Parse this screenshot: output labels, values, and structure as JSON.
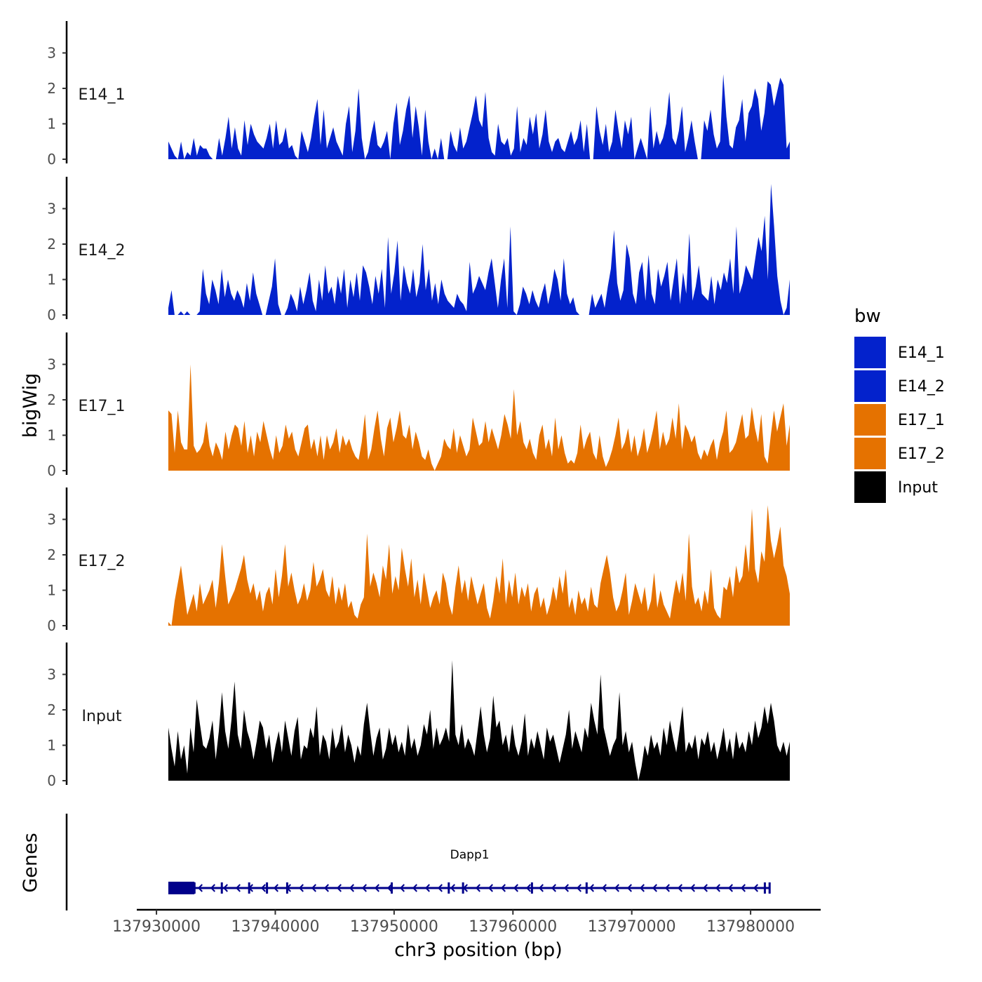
{
  "chart_data": {
    "type": "area",
    "chromosome": "chr3",
    "ylabel": "bigWig",
    "xlabel": "chr3 position (bp)",
    "genes_label": "Genes",
    "xlim": [
      137930000,
      137983000
    ],
    "data_range": [
      137931000,
      137983300
    ],
    "ylim": [
      0,
      3.9
    ],
    "yticks": [
      0,
      1,
      2,
      3
    ],
    "xticks": [
      137930000,
      137940000,
      137950000,
      137960000,
      137970000,
      137980000
    ],
    "xtick_labels": [
      "137930000",
      "137940000",
      "137950000",
      "137960000",
      "137970000",
      "137980000"
    ],
    "legend": {
      "title": "bw",
      "placement": "right",
      "entries": [
        {
          "name": "E14_1",
          "color": "#0322CC"
        },
        {
          "name": "E14_2",
          "color": "#0322CC"
        },
        {
          "name": "E17_1",
          "color": "#E57200"
        },
        {
          "name": "E17_2",
          "color": "#E57200"
        },
        {
          "name": "Input",
          "color": "#000000"
        }
      ]
    },
    "series": [
      {
        "name": "E14_1",
        "color": "#0322CC",
        "step": 150,
        "values": [
          0.5,
          0.3,
          0.1,
          0.0,
          0.5,
          0.0,
          0.2,
          0.1,
          0.6,
          0.1,
          0.4,
          0.3,
          0.3,
          0.1,
          0.0,
          0.0,
          0.6,
          0.1,
          0.6,
          1.2,
          0.3,
          0.9,
          0.3,
          0.1,
          1.1,
          0.4,
          1.0,
          0.7,
          0.5,
          0.4,
          0.3,
          0.6,
          1.0,
          0.3,
          1.1,
          0.4,
          0.5,
          0.9,
          0.3,
          0.4,
          0.1,
          0.0,
          0.8,
          0.5,
          0.2,
          0.6,
          1.2,
          1.7,
          0.4,
          1.4,
          0.3,
          0.6,
          0.9,
          0.5,
          0.3,
          0.1,
          1.0,
          1.5,
          0.2,
          0.8,
          2.0,
          0.6,
          0.0,
          0.2,
          0.7,
          1.1,
          0.4,
          0.3,
          0.5,
          0.8,
          0.0,
          1.0,
          1.6,
          0.4,
          0.8,
          1.4,
          1.8,
          0.6,
          1.5,
          0.9,
          0.1,
          1.4,
          0.5,
          0.0,
          0.3,
          0.0,
          0.6,
          0.0,
          0.0,
          0.8,
          0.4,
          0.2,
          0.9,
          0.3,
          0.5,
          0.9,
          1.3,
          1.8,
          1.1,
          0.9,
          1.9,
          0.6,
          0.2,
          0.1,
          1.0,
          0.5,
          0.4,
          0.6,
          0.1,
          0.3,
          1.5,
          0.2,
          0.6,
          0.4,
          1.2,
          0.7,
          1.3,
          0.3,
          0.7,
          1.4,
          0.5,
          0.2,
          0.5,
          0.6,
          0.3,
          0.2,
          0.5,
          0.8,
          0.4,
          0.6,
          1.1,
          0.2,
          1.0,
          0.0,
          0.0,
          1.5,
          0.8,
          0.4,
          1.0,
          0.2,
          0.5,
          1.4,
          0.8,
          0.3,
          1.1,
          0.7,
          1.2,
          0.0,
          0.3,
          0.6,
          0.3,
          0.0,
          1.5,
          0.3,
          0.8,
          0.4,
          0.6,
          1.0,
          1.9,
          0.6,
          0.4,
          0.8,
          1.5,
          0.2,
          0.6,
          1.1,
          0.5,
          0.0,
          0.0,
          1.1,
          0.8,
          1.4,
          0.7,
          0.3,
          0.5,
          2.4,
          1.2,
          0.4,
          0.3,
          0.9,
          1.1,
          1.7,
          0.5,
          1.3,
          1.5,
          2.0,
          1.7,
          0.8,
          1.3,
          2.2,
          2.1,
          1.5,
          1.9,
          2.3,
          2.1,
          0.3,
          0.5
        ]
      },
      {
        "name": "E14_2",
        "color": "#0322CC",
        "step": 150,
        "values": [
          0.2,
          0.7,
          0.0,
          0.0,
          0.1,
          0.0,
          0.1,
          0.0,
          0.0,
          0.0,
          0.1,
          1.3,
          0.6,
          0.3,
          1.0,
          0.7,
          0.3,
          1.3,
          0.5,
          1.0,
          0.6,
          0.4,
          0.7,
          0.5,
          0.2,
          0.9,
          0.4,
          1.2,
          0.6,
          0.3,
          0.0,
          0.0,
          0.4,
          0.8,
          1.6,
          0.3,
          0.0,
          0.0,
          0.2,
          0.6,
          0.4,
          0.1,
          0.8,
          0.3,
          0.7,
          1.2,
          0.4,
          0.1,
          1.0,
          0.4,
          1.4,
          0.6,
          0.8,
          0.3,
          1.1,
          0.6,
          1.3,
          0.2,
          1.0,
          0.5,
          1.2,
          0.4,
          1.4,
          1.2,
          0.8,
          0.3,
          1.1,
          0.6,
          1.3,
          0.2,
          2.2,
          0.6,
          1.2,
          2.1,
          0.4,
          1.4,
          0.9,
          0.6,
          1.3,
          0.5,
          0.9,
          2.0,
          0.7,
          1.3,
          0.4,
          0.9,
          0.3,
          1.0,
          0.6,
          0.4,
          0.3,
          0.2,
          0.6,
          0.4,
          0.3,
          0.1,
          1.5,
          0.6,
          0.8,
          1.1,
          0.9,
          0.7,
          1.2,
          1.6,
          0.9,
          0.2,
          1.0,
          1.6,
          0.2,
          2.5,
          0.1,
          0.0,
          0.3,
          0.8,
          0.6,
          0.3,
          0.7,
          0.4,
          0.2,
          0.6,
          0.9,
          0.3,
          0.7,
          1.3,
          1.0,
          0.4,
          1.6,
          0.6,
          0.3,
          0.5,
          0.1,
          0.0,
          0.0,
          0.0,
          0.0,
          0.6,
          0.2,
          0.4,
          0.6,
          0.2,
          0.8,
          1.3,
          2.4,
          0.9,
          0.4,
          0.7,
          2.0,
          1.6,
          0.6,
          0.3,
          1.2,
          1.5,
          0.4,
          1.7,
          0.6,
          0.3,
          1.3,
          0.8,
          1.1,
          1.5,
          0.4,
          1.0,
          1.6,
          0.3,
          1.2,
          0.6,
          2.3,
          0.4,
          0.8,
          1.4,
          0.6,
          0.5,
          0.4,
          1.1,
          0.3,
          1.0,
          0.7,
          1.2,
          0.9,
          1.6,
          0.6,
          2.5,
          0.6,
          0.9,
          1.4,
          1.2,
          1.0,
          1.6,
          2.2,
          1.8,
          2.8,
          1.0,
          3.7,
          2.5,
          1.1,
          0.4,
          0.0,
          0.2,
          1.0
        ]
      },
      {
        "name": "E17_1",
        "color": "#E57200",
        "step": 150,
        "values": [
          1.7,
          1.6,
          0.5,
          1.7,
          0.8,
          0.6,
          0.6,
          3.0,
          0.7,
          0.5,
          0.6,
          0.8,
          1.4,
          0.7,
          0.4,
          0.8,
          0.6,
          0.3,
          1.1,
          0.6,
          1.0,
          1.3,
          1.2,
          0.7,
          1.4,
          0.5,
          1.0,
          0.4,
          1.1,
          0.8,
          1.4,
          1.0,
          0.6,
          0.3,
          1.0,
          0.5,
          0.7,
          1.3,
          0.9,
          1.1,
          0.6,
          0.4,
          0.8,
          1.2,
          1.3,
          0.6,
          0.9,
          0.4,
          1.0,
          0.3,
          1.0,
          0.6,
          0.8,
          1.2,
          0.5,
          1.0,
          0.7,
          0.9,
          0.6,
          0.4,
          0.3,
          0.8,
          1.6,
          0.3,
          0.6,
          1.2,
          1.7,
          0.9,
          0.4,
          1.2,
          1.5,
          0.8,
          1.2,
          1.7,
          1.0,
          0.9,
          1.3,
          0.6,
          1.1,
          0.8,
          0.4,
          0.3,
          0.6,
          0.2,
          0.0,
          0.2,
          0.4,
          0.9,
          0.7,
          0.6,
          1.2,
          0.5,
          1.0,
          0.7,
          0.4,
          0.6,
          1.5,
          1.1,
          0.7,
          0.8,
          1.4,
          0.8,
          1.2,
          0.9,
          0.6,
          1.0,
          1.6,
          1.3,
          0.9,
          2.3,
          1.0,
          1.4,
          0.8,
          0.6,
          0.9,
          0.5,
          0.3,
          1.0,
          1.3,
          0.6,
          0.9,
          0.4,
          1.5,
          0.6,
          1.0,
          0.5,
          0.2,
          0.3,
          0.2,
          0.5,
          1.3,
          0.6,
          0.9,
          1.1,
          0.5,
          0.3,
          1.0,
          0.4,
          0.1,
          0.3,
          0.6,
          1.0,
          1.5,
          0.6,
          0.8,
          1.2,
          0.5,
          1.0,
          0.4,
          0.7,
          1.2,
          0.5,
          0.8,
          1.2,
          1.7,
          0.6,
          1.1,
          0.7,
          0.9,
          1.5,
          0.9,
          1.9,
          0.6,
          1.3,
          1.1,
          0.8,
          1.0,
          0.5,
          0.3,
          0.6,
          0.4,
          0.7,
          0.9,
          0.3,
          0.8,
          1.1,
          1.7,
          0.5,
          0.6,
          0.8,
          1.2,
          1.6,
          0.9,
          1.0,
          1.8,
          1.2,
          0.8,
          1.6,
          0.4,
          0.2,
          1.0,
          1.7,
          1.1,
          1.5,
          1.9,
          0.7,
          1.3
        ]
      },
      {
        "name": "E17_2",
        "color": "#E57200",
        "step": 150,
        "values": [
          0.1,
          0.0,
          0.7,
          1.2,
          1.7,
          1.0,
          0.3,
          0.6,
          0.9,
          0.4,
          1.2,
          0.6,
          0.8,
          1.0,
          1.3,
          0.5,
          1.2,
          2.3,
          1.4,
          0.6,
          0.8,
          1.0,
          1.3,
          1.6,
          2.0,
          1.3,
          0.9,
          1.2,
          0.7,
          1.0,
          0.4,
          0.9,
          1.1,
          0.6,
          1.6,
          0.8,
          1.4,
          2.3,
          1.1,
          1.5,
          1.0,
          0.6,
          0.8,
          1.2,
          0.7,
          1.0,
          1.8,
          1.1,
          1.3,
          1.6,
          1.0,
          0.8,
          1.4,
          0.6,
          1.1,
          0.7,
          1.2,
          0.5,
          0.7,
          0.3,
          0.2,
          0.6,
          0.8,
          2.6,
          1.1,
          1.5,
          1.2,
          0.8,
          1.7,
          1.3,
          2.3,
          0.9,
          1.4,
          1.0,
          2.2,
          1.6,
          1.1,
          1.9,
          0.8,
          1.3,
          0.6,
          1.5,
          1.0,
          0.5,
          0.8,
          1.0,
          0.6,
          1.5,
          1.2,
          0.6,
          0.3,
          1.1,
          1.7,
          0.9,
          1.3,
          0.7,
          1.4,
          1.0,
          0.6,
          0.9,
          1.2,
          0.5,
          0.2,
          0.7,
          1.4,
          0.9,
          1.9,
          0.6,
          1.3,
          0.8,
          1.5,
          0.6,
          1.1,
          0.8,
          1.2,
          0.4,
          0.9,
          1.1,
          0.5,
          0.8,
          0.3,
          0.6,
          1.1,
          0.7,
          1.4,
          0.9,
          1.6,
          0.5,
          0.8,
          0.3,
          1.0,
          0.6,
          0.8,
          0.4,
          1.1,
          0.6,
          0.5,
          1.2,
          1.6,
          2.0,
          1.5,
          0.8,
          0.4,
          0.6,
          1.0,
          1.5,
          0.3,
          0.7,
          1.2,
          0.9,
          0.6,
          1.1,
          0.4,
          0.7,
          1.5,
          0.5,
          1.0,
          0.6,
          0.4,
          0.2,
          0.8,
          1.3,
          0.9,
          1.5,
          0.7,
          2.6,
          1.1,
          0.6,
          0.8,
          0.4,
          1.0,
          0.6,
          1.6,
          0.5,
          0.3,
          0.2,
          1.1,
          1.0,
          1.4,
          0.8,
          1.7,
          1.2,
          1.4,
          2.3,
          1.5,
          3.3,
          1.6,
          1.2,
          2.1,
          1.8,
          3.4,
          2.4,
          1.9,
          2.3,
          2.8,
          1.7,
          1.4,
          0.9
        ]
      },
      {
        "name": "Input",
        "color": "#000000",
        "step": 150,
        "values": [
          1.5,
          0.9,
          0.4,
          1.4,
          0.6,
          1.0,
          0.2,
          1.5,
          0.8,
          2.3,
          1.6,
          1.0,
          0.9,
          1.2,
          1.7,
          0.6,
          1.4,
          2.5,
          1.4,
          0.9,
          1.7,
          2.8,
          1.3,
          0.9,
          2.0,
          1.4,
          1.1,
          0.6,
          1.1,
          1.7,
          1.5,
          0.9,
          1.3,
          0.5,
          1.0,
          1.4,
          0.8,
          1.7,
          1.2,
          0.7,
          1.4,
          1.8,
          0.6,
          1.0,
          0.9,
          1.5,
          1.2,
          2.1,
          0.7,
          1.3,
          1.1,
          0.6,
          1.5,
          0.9,
          1.1,
          1.6,
          0.8,
          1.3,
          1.0,
          0.5,
          1.0,
          0.7,
          1.6,
          2.2,
          1.4,
          0.7,
          1.2,
          1.5,
          0.6,
          0.9,
          1.5,
          1.0,
          1.3,
          0.8,
          1.1,
          0.7,
          1.6,
          0.9,
          1.2,
          0.7,
          1.0,
          1.6,
          1.3,
          2.0,
          0.9,
          1.5,
          1.0,
          1.2,
          1.5,
          1.1,
          3.4,
          1.3,
          1.0,
          1.6,
          0.9,
          1.2,
          1.0,
          0.7,
          1.4,
          2.1,
          1.3,
          0.8,
          1.2,
          2.4,
          1.5,
          1.7,
          1.0,
          1.3,
          0.8,
          1.6,
          1.0,
          0.7,
          1.1,
          1.9,
          0.7,
          1.2,
          0.9,
          1.4,
          1.0,
          0.6,
          1.5,
          1.1,
          1.3,
          0.9,
          0.5,
          0.9,
          1.3,
          2.0,
          0.9,
          1.4,
          1.1,
          0.8,
          1.5,
          1.2,
          2.2,
          1.7,
          1.3,
          3.0,
          1.5,
          1.1,
          0.7,
          1.0,
          1.2,
          2.5,
          1.0,
          1.4,
          0.8,
          1.1,
          0.5,
          0.0,
          0.4,
          1.0,
          0.7,
          1.3,
          0.9,
          1.1,
          0.7,
          1.5,
          1.0,
          1.7,
          1.2,
          0.8,
          1.4,
          2.1,
          0.8,
          1.1,
          0.9,
          1.3,
          0.6,
          1.2,
          1.0,
          1.4,
          0.8,
          1.1,
          0.6,
          1.0,
          1.5,
          0.8,
          1.2,
          0.6,
          1.4,
          0.9,
          1.1,
          0.8,
          1.4,
          1.0,
          1.7,
          1.2,
          1.5,
          2.1,
          1.6,
          2.2,
          1.7,
          1.0,
          0.8,
          1.1,
          0.7,
          1.1
        ]
      }
    ],
    "gene_track": {
      "gene": "Dapp1",
      "strand": "-",
      "start": 137931000,
      "end": 137981600,
      "utr3": [
        137931000,
        137933200
      ],
      "exons": [
        137933200,
        137935500,
        137937800,
        137939300,
        137941000,
        137949800,
        137954600,
        137955800,
        137961600,
        137966200,
        137981200,
        137981600
      ]
    }
  }
}
